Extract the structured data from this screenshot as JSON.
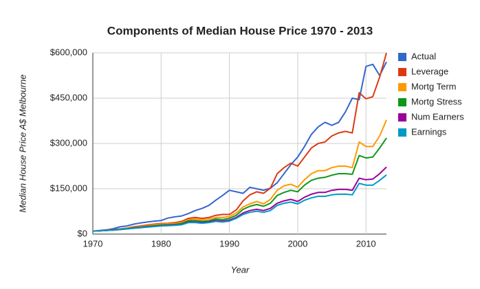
{
  "chart_data": {
    "type": "line",
    "title": "Components of Median House Price 1970 - 2013",
    "x_label": "Year",
    "y_label": "Median House Price A$ Melbourne",
    "x": [
      1970,
      1971,
      1972,
      1973,
      1974,
      1975,
      1976,
      1977,
      1978,
      1979,
      1980,
      1981,
      1982,
      1983,
      1984,
      1985,
      1986,
      1987,
      1988,
      1989,
      1990,
      1991,
      1992,
      1993,
      1994,
      1995,
      1996,
      1997,
      1998,
      1999,
      2000,
      2001,
      2002,
      2003,
      2004,
      2005,
      2006,
      2007,
      2008,
      2009,
      2010,
      2011,
      2012,
      2013
    ],
    "xlim": [
      1970,
      2013
    ],
    "xticks": [
      1970,
      1980,
      1990,
      2000,
      2010
    ],
    "ylim": [
      0,
      600000
    ],
    "yticks": [
      {
        "value": 0,
        "label": "$0"
      },
      {
        "value": 150000,
        "label": "$150,000"
      },
      {
        "value": 300000,
        "label": "$300,000"
      },
      {
        "value": 450000,
        "label": "$450,000"
      },
      {
        "value": 600000,
        "label": "$600,000"
      }
    ],
    "grid": true,
    "legend": "right",
    "series": [
      {
        "name": "Actual",
        "color": "#3366cc",
        "values": [
          10000,
          12000,
          14000,
          18000,
          24000,
          27000,
          33000,
          37000,
          40000,
          43000,
          45000,
          53000,
          57000,
          60000,
          68000,
          78000,
          85000,
          95000,
          112000,
          128000,
          145000,
          140000,
          135000,
          155000,
          150000,
          145000,
          152000,
          170000,
          200000,
          230000,
          255000,
          290000,
          330000,
          355000,
          370000,
          360000,
          370000,
          405000,
          450000,
          445000,
          555000,
          562000,
          525000,
          570000
        ]
      },
      {
        "name": "Leverage",
        "color": "#dc3912",
        "values": [
          10000,
          11000,
          13000,
          15000,
          17000,
          20000,
          24000,
          27000,
          30000,
          33000,
          35000,
          36000,
          38000,
          42000,
          52000,
          55000,
          52000,
          55000,
          62000,
          65000,
          65000,
          80000,
          110000,
          130000,
          140000,
          135000,
          152000,
          200000,
          220000,
          235000,
          225000,
          255000,
          285000,
          300000,
          305000,
          325000,
          335000,
          340000,
          335000,
          468000,
          448000,
          455000,
          520000,
          600000
        ]
      },
      {
        "name": "Mortg Term",
        "color": "#ff9900",
        "values": [
          10000,
          11000,
          12000,
          14000,
          16000,
          19000,
          22000,
          25000,
          28000,
          31000,
          33000,
          34000,
          35000,
          38000,
          48000,
          50000,
          47000,
          50000,
          55000,
          55000,
          58000,
          70000,
          90000,
          100000,
          108000,
          100000,
          115000,
          145000,
          160000,
          165000,
          155000,
          180000,
          200000,
          210000,
          210000,
          220000,
          225000,
          225000,
          220000,
          305000,
          290000,
          290000,
          325000,
          378000
        ]
      },
      {
        "name": "Mortg Stress",
        "color": "#109618",
        "values": [
          10000,
          11000,
          12000,
          14000,
          16000,
          18000,
          21000,
          23000,
          26000,
          28000,
          30000,
          31000,
          32000,
          35000,
          44000,
          45000,
          42000,
          44000,
          50000,
          48000,
          52000,
          62000,
          82000,
          92000,
          98000,
          92000,
          102000,
          128000,
          138000,
          145000,
          140000,
          162000,
          178000,
          185000,
          188000,
          195000,
          200000,
          200000,
          198000,
          260000,
          252000,
          255000,
          285000,
          318000
        ]
      },
      {
        "name": "Num Earners",
        "color": "#990099",
        "values": [
          10000,
          11000,
          12000,
          13000,
          15000,
          17000,
          20000,
          22000,
          24000,
          26000,
          28000,
          29000,
          30000,
          32000,
          40000,
          40000,
          38000,
          40000,
          45000,
          43000,
          46000,
          55000,
          70000,
          78000,
          82000,
          78000,
          85000,
          102000,
          110000,
          115000,
          108000,
          122000,
          132000,
          138000,
          138000,
          145000,
          148000,
          148000,
          145000,
          185000,
          180000,
          182000,
          200000,
          222000
        ]
      },
      {
        "name": "Earnings",
        "color": "#0099c6",
        "values": [
          10000,
          11000,
          12000,
          13000,
          15000,
          17000,
          19000,
          21000,
          23000,
          25000,
          27000,
          28000,
          29000,
          31000,
          38000,
          38000,
          36000,
          38000,
          42000,
          40000,
          43000,
          52000,
          65000,
          72000,
          76000,
          72000,
          78000,
          95000,
          102000,
          106000,
          100000,
          112000,
          120000,
          125000,
          125000,
          130000,
          132000,
          132000,
          130000,
          168000,
          162000,
          162000,
          178000,
          196000
        ]
      }
    ]
  }
}
